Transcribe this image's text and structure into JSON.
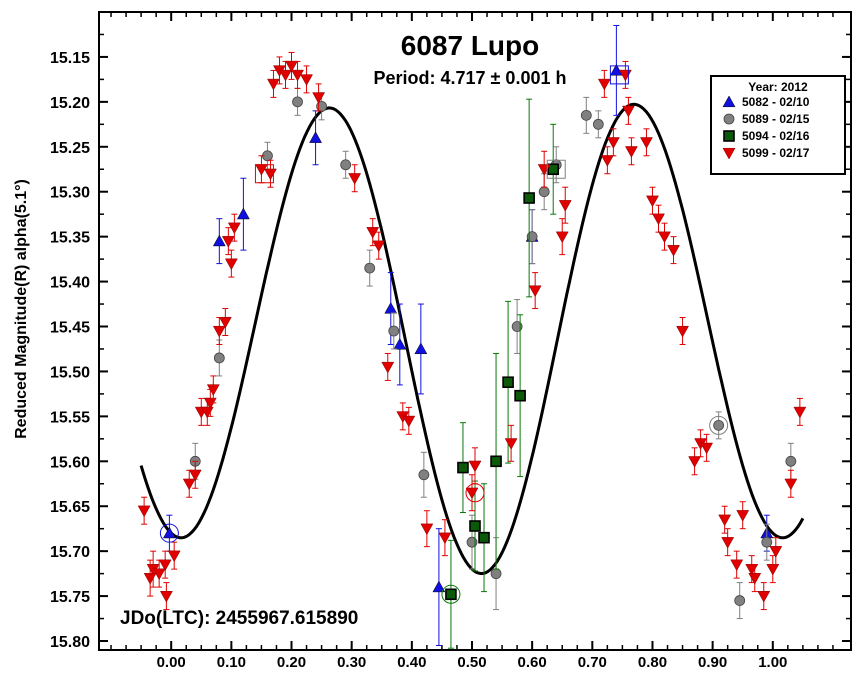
{
  "chart_data": {
    "type": "scatter",
    "title": "6087 Lupo",
    "subtitle": "Period: 4.717 ± 0.001 h",
    "ylabel": "Reduced Magnitude(R) alpha(5.1°)",
    "xlabel": "",
    "annotation": "JDo(LTC): 2455967.615890",
    "xlim": [
      -0.12,
      1.13
    ],
    "ylim": [
      15.81,
      15.1
    ],
    "y_inverted": true,
    "x_ticks": [
      0.0,
      0.1,
      0.2,
      0.3,
      0.4,
      0.5,
      0.6,
      0.7,
      0.8,
      0.9,
      1.0
    ],
    "x_tick_labels": [
      "0.00",
      "0.10",
      "0.20",
      "0.30",
      "0.40",
      "0.50",
      "0.60",
      "0.70",
      "0.80",
      "0.90",
      "1.00"
    ],
    "y_ticks": [
      15.15,
      15.2,
      15.25,
      15.3,
      15.35,
      15.4,
      15.45,
      15.5,
      15.55,
      15.6,
      15.65,
      15.7,
      15.75,
      15.8
    ],
    "y_tick_labels": [
      "15.15",
      "15.20",
      "15.25",
      "15.30",
      "15.35",
      "15.40",
      "15.45",
      "15.50",
      "15.55",
      "15.60",
      "15.65",
      "15.70",
      "15.75",
      "15.80"
    ],
    "legend_title": "Year: 2012",
    "legend_position": "top-right",
    "grid": false,
    "series": [
      {
        "name": "5082 - 02/10",
        "marker": "triangle-up",
        "color": "#1010e0",
        "x": [
          -0.003,
          0.08,
          0.12,
          0.24,
          0.365,
          0.38,
          0.415,
          0.445,
          0.6,
          0.74,
          0.99
        ],
        "y": [
          15.68,
          15.355,
          15.325,
          15.24,
          15.43,
          15.47,
          15.475,
          15.74,
          15.35,
          15.165,
          15.68
        ],
        "err": [
          0.02,
          0.025,
          0.04,
          0.03,
          0.04,
          0.045,
          0.05,
          0.065,
          0.03,
          0.05,
          0.02
        ]
      },
      {
        "name": "5089 - 02/15",
        "marker": "circle",
        "color": "#808080",
        "x": [
          0.04,
          0.08,
          0.16,
          0.21,
          0.25,
          0.29,
          0.33,
          0.37,
          0.42,
          0.5,
          0.54,
          0.575,
          0.6,
          0.62,
          0.64,
          0.69,
          0.71,
          0.91,
          0.945,
          0.99,
          1.03
        ],
        "y": [
          15.6,
          15.485,
          15.26,
          15.2,
          15.205,
          15.27,
          15.385,
          15.455,
          15.615,
          15.69,
          15.725,
          15.45,
          15.35,
          15.3,
          15.27,
          15.215,
          15.225,
          15.56,
          15.755,
          15.69,
          15.6
        ],
        "err": [
          0.02,
          0.02,
          0.015,
          0.015,
          0.015,
          0.015,
          0.02,
          0.02,
          0.025,
          0.03,
          0.04,
          0.03,
          0.03,
          0.02,
          0.02,
          0.02,
          0.015,
          0.015,
          0.02,
          0.02,
          0.02
        ]
      },
      {
        "name": "5094 - 02/16",
        "marker": "square",
        "color": "#0a780a",
        "x": [
          0.465,
          0.485,
          0.505,
          0.52,
          0.54,
          0.56,
          0.58,
          0.595,
          0.635
        ],
        "y": [
          15.748,
          15.607,
          15.672,
          15.685,
          15.6,
          15.512,
          15.527,
          15.307,
          15.275
        ],
        "err": [
          0.06,
          0.05,
          0.05,
          0.06,
          0.12,
          0.09,
          0.09,
          0.11,
          0.05
        ]
      },
      {
        "name": "5099 - 02/17",
        "marker": "triangle-down",
        "color": "#e00000",
        "x": [
          -0.045,
          -0.03,
          -0.01,
          0.005,
          -0.035,
          -0.02,
          -0.008,
          0.03,
          0.04,
          0.05,
          0.06,
          0.065,
          0.07,
          0.08,
          0.09,
          0.095,
          0.1,
          0.105,
          0.15,
          0.165,
          0.17,
          0.18,
          0.19,
          0.2,
          0.21,
          0.225,
          0.245,
          0.305,
          0.335,
          0.345,
          0.36,
          0.385,
          0.395,
          0.425,
          0.455,
          0.5,
          0.505,
          0.565,
          0.605,
          0.62,
          0.65,
          0.655,
          0.72,
          0.725,
          0.735,
          0.755,
          0.76,
          0.765,
          0.79,
          0.8,
          0.81,
          0.82,
          0.835,
          0.85,
          0.87,
          0.88,
          0.89,
          0.92,
          0.925,
          0.94,
          0.95,
          0.965,
          0.97,
          0.985,
          1.0,
          1.005,
          1.03,
          1.045
        ],
        "y": [
          15.655,
          15.72,
          15.715,
          15.705,
          15.73,
          15.725,
          15.75,
          15.625,
          15.615,
          15.545,
          15.545,
          15.535,
          15.52,
          15.455,
          15.445,
          15.355,
          15.38,
          15.34,
          15.275,
          15.28,
          15.18,
          15.165,
          15.17,
          15.16,
          15.17,
          15.175,
          15.195,
          15.285,
          15.345,
          15.36,
          15.495,
          15.55,
          15.555,
          15.675,
          15.685,
          15.635,
          15.605,
          15.58,
          15.41,
          15.275,
          15.35,
          15.315,
          15.18,
          15.265,
          15.245,
          15.17,
          15.21,
          15.255,
          15.245,
          15.31,
          15.33,
          15.35,
          15.365,
          15.455,
          15.6,
          15.58,
          15.585,
          15.665,
          15.69,
          15.715,
          15.66,
          15.72,
          15.73,
          15.75,
          15.72,
          15.7,
          15.625,
          15.545
        ],
        "err": [
          0.015,
          0.02,
          0.015,
          0.015,
          0.02,
          0.015,
          0.015,
          0.015,
          0.015,
          0.015,
          0.015,
          0.015,
          0.015,
          0.015,
          0.015,
          0.015,
          0.015,
          0.015,
          0.015,
          0.015,
          0.015,
          0.015,
          0.015,
          0.015,
          0.015,
          0.015,
          0.015,
          0.015,
          0.015,
          0.015,
          0.015,
          0.015,
          0.015,
          0.02,
          0.02,
          0.02,
          0.02,
          0.02,
          0.02,
          0.02,
          0.02,
          0.02,
          0.015,
          0.015,
          0.015,
          0.015,
          0.015,
          0.015,
          0.015,
          0.015,
          0.015,
          0.015,
          0.015,
          0.015,
          0.015,
          0.015,
          0.015,
          0.015,
          0.015,
          0.015,
          0.015,
          0.015,
          0.015,
          0.015,
          0.015,
          0.015,
          0.015,
          0.015
        ]
      }
    ],
    "highlighted_points": [
      {
        "x": -0.003,
        "y": 15.68,
        "color": "#1010e0",
        "shape": "circle"
      },
      {
        "x": 0.155,
        "y": 15.28,
        "color": "#e00000",
        "shape": "square"
      },
      {
        "x": 0.465,
        "y": 15.748,
        "color": "#0a780a",
        "shape": "circle"
      },
      {
        "x": 0.505,
        "y": 15.635,
        "color": "#e00000",
        "shape": "circle"
      },
      {
        "x": 0.64,
        "y": 15.275,
        "color": "#808080",
        "shape": "square"
      },
      {
        "x": 0.745,
        "y": 15.17,
        "color": "#1010e0",
        "shape": "square"
      },
      {
        "x": 0.91,
        "y": 15.56,
        "color": "#808080",
        "shape": "circle"
      }
    ],
    "fit_curve": {
      "type": "fourier",
      "mean": 15.455,
      "terms": [
        {
          "harmonic": 1,
          "a": -0.02,
          "b": 0.0
        },
        {
          "harmonic": 2,
          "a": 0.245,
          "b": 0.05
        }
      ],
      "x_range": [
        -0.05,
        1.05
      ]
    }
  }
}
